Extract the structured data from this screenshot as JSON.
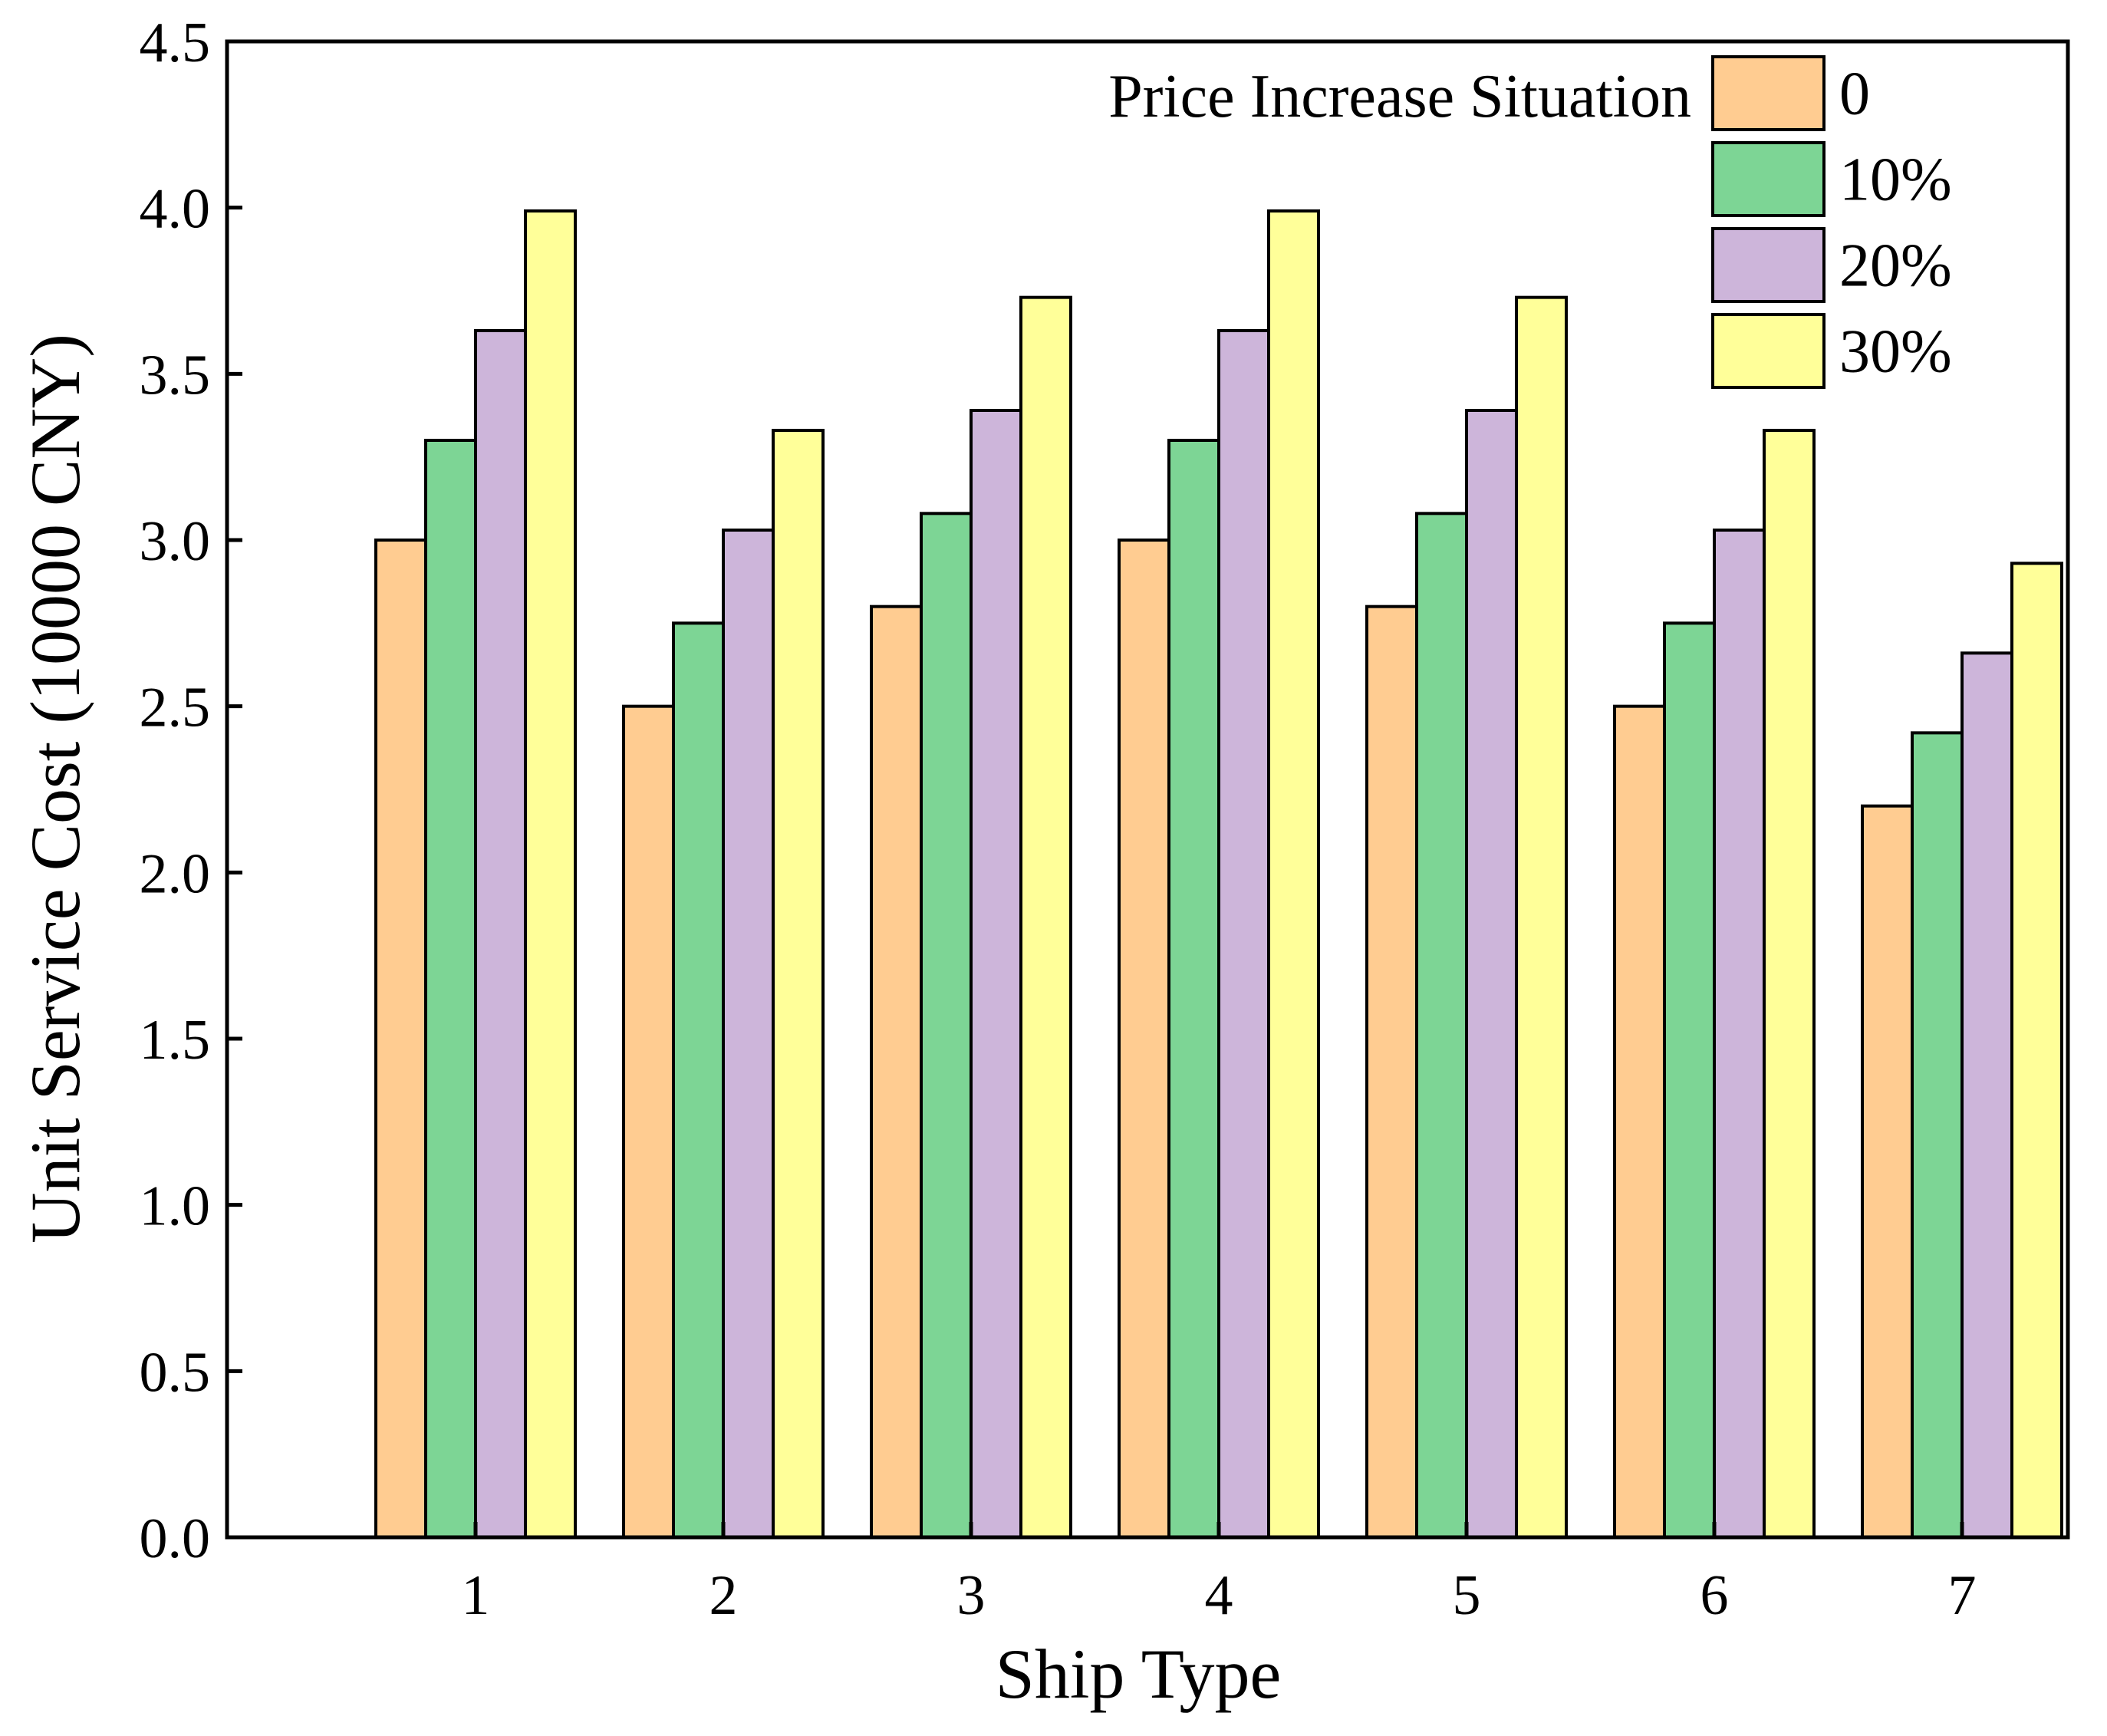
{
  "chart_data": {
    "type": "bar",
    "title": "",
    "xlabel": "Ship Type",
    "ylabel": "Unit Service Cost (10000 CNY)",
    "categories": [
      "1",
      "2",
      "3",
      "4",
      "5",
      "6",
      "7"
    ],
    "ylim": [
      0,
      4.5
    ],
    "yticks": [
      "0.0",
      "0.5",
      "1.0",
      "1.5",
      "2.0",
      "2.5",
      "3.0",
      "3.5",
      "4.0",
      "4.5"
    ],
    "legend": {
      "title": "Price Increase Situation",
      "position": "top-right"
    },
    "series": [
      {
        "name": "0",
        "color": "#FFCC91",
        "values": [
          3.0,
          2.5,
          2.8,
          3.0,
          2.8,
          2.5,
          2.2
        ]
      },
      {
        "name": "10%",
        "color": "#7DD595",
        "values": [
          3.3,
          2.75,
          3.08,
          3.3,
          3.08,
          2.75,
          2.42
        ]
      },
      {
        "name": "20%",
        "color": "#CDB5DA",
        "values": [
          3.63,
          3.03,
          3.39,
          3.63,
          3.39,
          3.03,
          2.66
        ]
      },
      {
        "name": "30%",
        "color": "#FFFF99",
        "values": [
          3.99,
          3.33,
          3.73,
          3.99,
          3.73,
          3.33,
          2.93
        ]
      }
    ]
  }
}
